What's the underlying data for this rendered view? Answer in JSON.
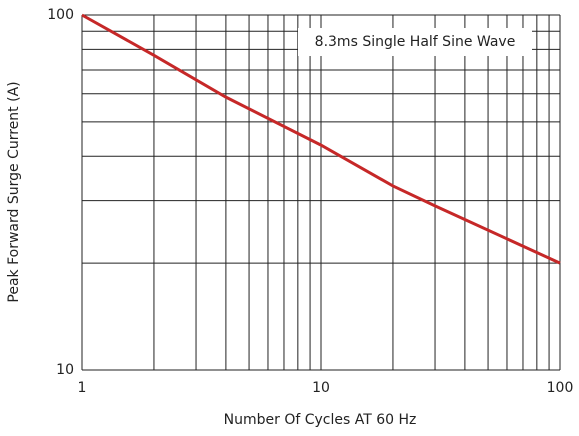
{
  "chart_data": {
    "type": "line",
    "xlabel": "Number Of Cycles AT 60 Hz",
    "ylabel": "Peak Forward Surge Current (A)",
    "annotation": "8.3ms Single Half Sine Wave",
    "xscale": "log",
    "yscale": "log",
    "xlim": [
      1,
      100
    ],
    "ylim": [
      10,
      100
    ],
    "xticks": [
      1,
      10,
      100
    ],
    "yticks": [
      10,
      100
    ],
    "xminor": [
      2,
      3,
      4,
      5,
      6,
      7,
      8,
      9,
      20,
      30,
      40,
      50,
      60,
      70,
      80,
      90
    ],
    "yminor": [
      20,
      30,
      40,
      50,
      60,
      70,
      80,
      90
    ],
    "grid": true,
    "series": [
      {
        "color": "#c62828",
        "x": [
          1,
          2,
          4,
          10,
          20,
          30,
          100
        ],
        "values": [
          100,
          77,
          58.7,
          43,
          33,
          29,
          20
        ]
      }
    ]
  }
}
